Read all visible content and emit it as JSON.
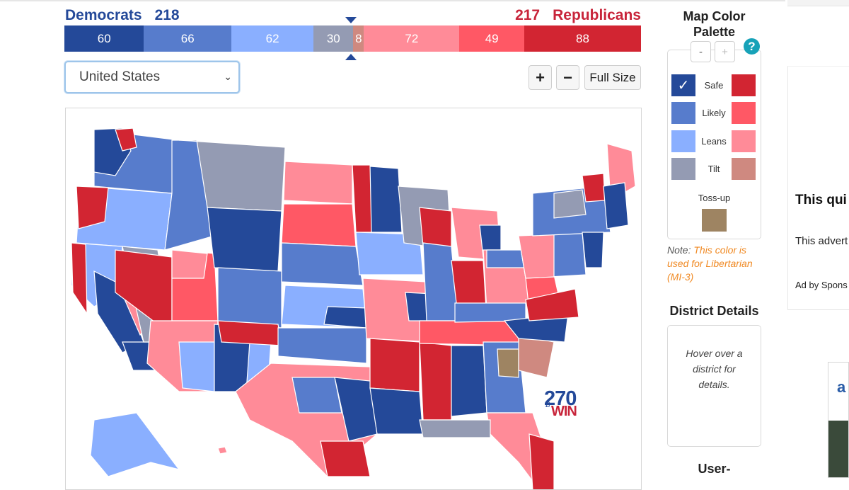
{
  "tally": {
    "dem_label": "Democrats",
    "dem_total": "218",
    "rep_label": "Republicans",
    "rep_total": "217"
  },
  "seat_bar": [
    {
      "name": "dem-safe",
      "value": 60,
      "color": "#244999"
    },
    {
      "name": "dem-likely",
      "value": 66,
      "color": "#577ccc"
    },
    {
      "name": "dem-leans",
      "value": 62,
      "color": "#8aafff"
    },
    {
      "name": "dem-tilt",
      "value": 30,
      "color": "#949bb3"
    },
    {
      "name": "rep-tilt",
      "value": 8,
      "color": "#cf8980"
    },
    {
      "name": "rep-leans",
      "value": 72,
      "color": "#ff8b98"
    },
    {
      "name": "rep-likely",
      "value": 49,
      "color": "#ff5865"
    },
    {
      "name": "rep-safe",
      "value": 88,
      "color": "#d22532"
    }
  ],
  "controls": {
    "region_select": "United States",
    "zoom_in": "+",
    "zoom_out": "−",
    "full_size": "Full Size"
  },
  "map_logo": {
    "number": "270",
    "to": "to",
    "win": "WIN"
  },
  "palette": {
    "title": "Map Color Palette",
    "dec": "-",
    "inc": "+",
    "help": "?",
    "rows": [
      {
        "label": "Safe",
        "dem": "#244999",
        "rep": "#d22532",
        "selected": true
      },
      {
        "label": "Likely",
        "dem": "#577ccc",
        "rep": "#ff5865",
        "selected": false
      },
      {
        "label": "Leans",
        "dem": "#8aafff",
        "rep": "#ff8b98",
        "selected": false
      },
      {
        "label": "Tilt",
        "dem": "#949bb3",
        "rep": "#cf8980",
        "selected": false
      }
    ],
    "tossup_label": "Toss-up",
    "tossup_color": "#9e8462",
    "note_prefix": "Note: ",
    "note_highlight": "This color is used for Libertarian",
    "note_suffix": " (MI-3)"
  },
  "district_details": {
    "title": "District Details",
    "hint": "Hover over a district for details."
  },
  "user_section": "User-",
  "ad": {
    "headline": "This qui informat",
    "body": "This advert trending vic",
    "sponsor": "Ad by Spons"
  },
  "ad2_letter": "a"
}
